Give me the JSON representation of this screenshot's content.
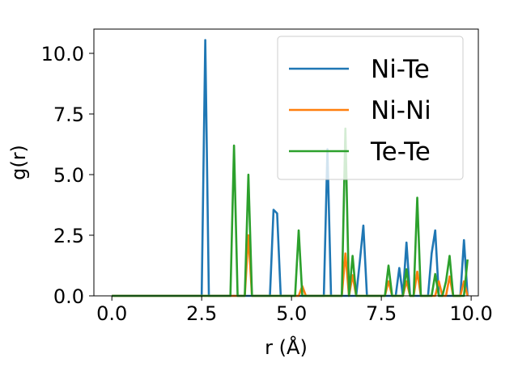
{
  "chart_data": {
    "type": "line",
    "xlabel": "r (Å)",
    "ylabel": "g(r)",
    "xlim": [
      -0.5,
      10.2
    ],
    "ylim": [
      0,
      11.0
    ],
    "xticks": [
      0.0,
      2.5,
      5.0,
      7.5,
      10.0
    ],
    "xtick_labels": [
      "0.0",
      "2.5",
      "5.0",
      "7.5",
      "10.0"
    ],
    "yticks": [
      0.0,
      2.5,
      5.0,
      7.5,
      10.0
    ],
    "ytick_labels": [
      "0.0",
      "2.5",
      "5.0",
      "7.5",
      "10.0"
    ],
    "grid": false,
    "legend_position": "top-right",
    "x": [
      0.0,
      2.5,
      2.6,
      2.7,
      3.3,
      3.4,
      3.5,
      3.7,
      3.8,
      3.9,
      4.4,
      4.5,
      4.6,
      4.7,
      5.1,
      5.2,
      5.3,
      5.4,
      5.9,
      6.0,
      6.1,
      6.4,
      6.5,
      6.6,
      6.7,
      6.8,
      6.9,
      7.0,
      7.1,
      7.2,
      7.6,
      7.7,
      7.8,
      7.9,
      8.0,
      8.1,
      8.2,
      8.3,
      8.4,
      8.5,
      8.6,
      8.8,
      8.9,
      9.0,
      9.1,
      9.2,
      9.3,
      9.4,
      9.5,
      9.6,
      9.7,
      9.8,
      9.9
    ],
    "series": [
      {
        "name": "Ni-Te",
        "color": "#1f77b4",
        "values": [
          0.0,
          0.0,
          10.55,
          0.0,
          0.0,
          0.0,
          0.0,
          0.0,
          0.0,
          0.0,
          0.0,
          3.55,
          3.4,
          0.0,
          0.0,
          0.0,
          0.0,
          0.0,
          0.0,
          6.05,
          0.0,
          0.0,
          0.0,
          0.0,
          0.0,
          0.0,
          1.4,
          2.9,
          0.0,
          0.0,
          0.0,
          0.0,
          0.0,
          0.0,
          1.15,
          0.0,
          2.2,
          0.0,
          0.0,
          0.0,
          0.0,
          0.0,
          1.75,
          2.7,
          0.0,
          0.0,
          0.0,
          0.0,
          0.0,
          0.0,
          0.0,
          2.3,
          0.0
        ]
      },
      {
        "name": "Ni-Ni",
        "color": "#ff7f0e",
        "values": [
          0.0,
          0.0,
          0.0,
          0.0,
          0.0,
          0.0,
          0.0,
          0.0,
          2.5,
          0.0,
          0.0,
          0.0,
          0.0,
          0.0,
          0.0,
          0.0,
          0.4,
          0.0,
          0.0,
          0.0,
          0.0,
          0.0,
          1.75,
          0.0,
          0.85,
          0.0,
          0.0,
          0.0,
          0.0,
          0.0,
          0.0,
          0.6,
          0.0,
          0.0,
          0.0,
          0.0,
          0.6,
          0.0,
          0.0,
          1.0,
          0.0,
          0.0,
          0.0,
          0.0,
          0.6,
          0.0,
          0.0,
          0.8,
          0.0,
          0.0,
          0.0,
          0.6,
          0.0
        ]
      },
      {
        "name": "Te-Te",
        "color": "#2ca02c",
        "values": [
          0.0,
          0.0,
          0.0,
          0.0,
          0.0,
          6.2,
          0.0,
          0.0,
          5.0,
          0.0,
          0.0,
          0.0,
          0.0,
          0.0,
          0.0,
          2.7,
          0.0,
          0.0,
          0.0,
          0.0,
          0.0,
          0.0,
          6.9,
          0.0,
          1.65,
          0.0,
          0.0,
          0.0,
          0.0,
          0.0,
          0.0,
          1.25,
          0.0,
          0.0,
          0.0,
          0.0,
          1.1,
          0.0,
          0.0,
          4.05,
          0.0,
          0.0,
          0.0,
          0.9,
          0.0,
          0.0,
          0.6,
          1.65,
          0.0,
          0.0,
          0.0,
          0.0,
          1.5
        ]
      }
    ]
  }
}
